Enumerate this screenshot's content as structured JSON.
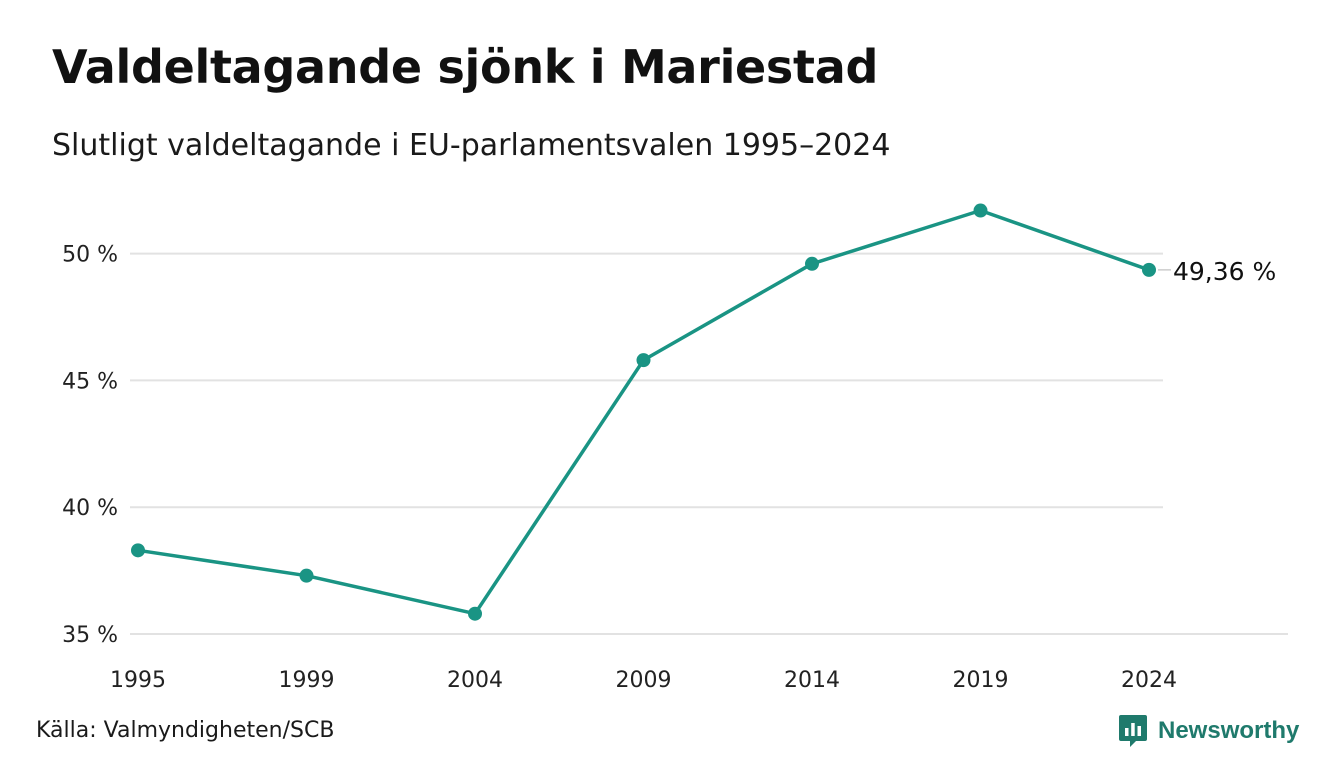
{
  "title": "Valdeltagande sjönk i Mariestad",
  "subtitle": "Slutligt valdeltagande i EU-parlamentsvalen 1995–2024",
  "source": "Källa: Valmyndigheten/SCB",
  "brand": {
    "name": "Newsworthy",
    "icon": "newsworthy-logo-icon",
    "color": "#1f7a6c"
  },
  "chart_data": {
    "type": "line",
    "title": "Valdeltagande sjönk i Mariestad",
    "subtitle": "Slutligt valdeltagande i EU-parlamentsvalen 1995–2024",
    "x": [
      "1995",
      "1999",
      "2004",
      "2009",
      "2014",
      "2019",
      "2024"
    ],
    "series": [
      {
        "values": [
          38.3,
          37.3,
          35.8,
          45.8,
          49.6,
          51.7,
          49.36
        ],
        "color": "#1a9484"
      }
    ],
    "y_ticks": [
      35,
      40,
      45,
      50
    ],
    "y_tick_labels": [
      "35 %",
      "40 %",
      "45 %",
      "50 %"
    ],
    "ylim": [
      35,
      51.8
    ],
    "xlabel": "",
    "ylabel": "",
    "grid": true,
    "legend": "none",
    "end_label": "49,36 %"
  }
}
